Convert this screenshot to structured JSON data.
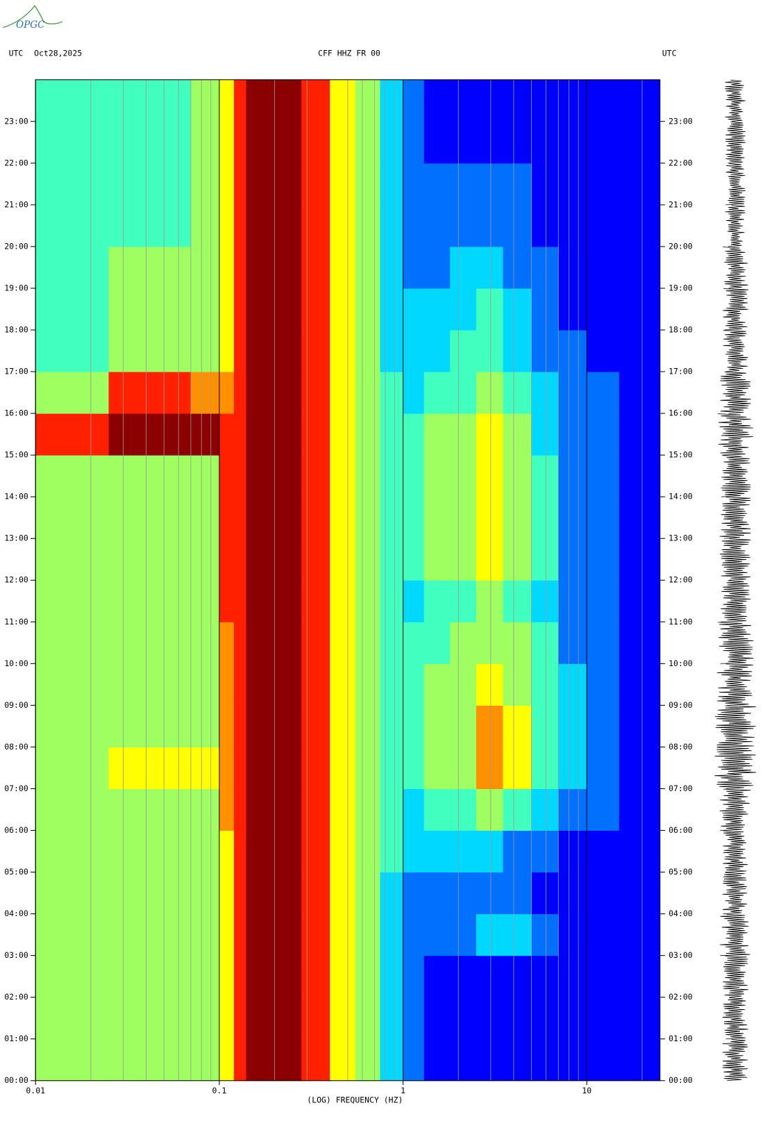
{
  "logo": "OPGC",
  "chart_data": {
    "type": "heatmap",
    "title_left": "UTC",
    "date": "Oct28,2025",
    "title": "CFF HHZ FR 00",
    "title_right": "UTC",
    "xlabel": "(LOG) FREQUENCY (HZ)",
    "xscale": "log",
    "xlim": [
      0.01,
      25
    ],
    "xticks": [
      0.01,
      0.1,
      1,
      10
    ],
    "xgrid": [
      0.02,
      0.03,
      0.04,
      0.05,
      0.06,
      0.07,
      0.08,
      0.09,
      0.2,
      0.3,
      0.4,
      0.5,
      0.6,
      0.7,
      0.8,
      0.9,
      2,
      3,
      4,
      5,
      6,
      7,
      8,
      9,
      20
    ],
    "ylim": [
      0,
      24
    ],
    "yticks": [
      {
        "value": 0,
        "label": "00:00"
      },
      {
        "value": 1,
        "label": "01:00"
      },
      {
        "value": 2,
        "label": "02:00"
      },
      {
        "value": 3,
        "label": "03:00"
      },
      {
        "value": 4,
        "label": "04:00"
      },
      {
        "value": 5,
        "label": "05:00"
      },
      {
        "value": 6,
        "label": "06:00"
      },
      {
        "value": 7,
        "label": "07:00"
      },
      {
        "value": 8,
        "label": "08:00"
      },
      {
        "value": 9,
        "label": "09:00"
      },
      {
        "value": 10,
        "label": "10:00"
      },
      {
        "value": 11,
        "label": "11:00"
      },
      {
        "value": 12,
        "label": "12:00"
      },
      {
        "value": 13,
        "label": "13:00"
      },
      {
        "value": 14,
        "label": "14:00"
      },
      {
        "value": 15,
        "label": "15:00"
      },
      {
        "value": 16,
        "label": "16:00"
      },
      {
        "value": 17,
        "label": "17:00"
      },
      {
        "value": 18,
        "label": "18:00"
      },
      {
        "value": 19,
        "label": "19:00"
      },
      {
        "value": 20,
        "label": "20:00"
      },
      {
        "value": 21,
        "label": "21:00"
      },
      {
        "value": 22,
        "label": "22:00"
      },
      {
        "value": 23,
        "label": "23:00"
      }
    ],
    "x_edges": [
      0.01,
      0.025,
      0.07,
      0.1,
      0.12,
      0.14,
      0.28,
      0.4,
      0.55,
      0.75,
      1,
      1.3,
      1.8,
      2.5,
      3.5,
      5,
      7,
      10,
      15,
      25
    ],
    "y_edges": [
      0,
      1,
      2,
      3,
      4,
      5,
      6,
      7,
      8,
      9,
      10,
      11,
      12,
      13,
      14,
      15,
      16,
      17,
      18,
      19,
      20,
      21,
      22,
      23,
      24
    ],
    "zlim": [
      0,
      10
    ],
    "colormap": [
      "#00008f",
      "#0000ff",
      "#0070ff",
      "#00d8ff",
      "#40ffbf",
      "#a0ff60",
      "#ffff00",
      "#ff9000",
      "#ff2000",
      "#8b0000"
    ],
    "z": [
      [
        5,
        5,
        5,
        7,
        9,
        10,
        9,
        7,
        5,
        3,
        2,
        1,
        1,
        1,
        1,
        1,
        1,
        1,
        1
      ],
      [
        5,
        5,
        5,
        7,
        9,
        10,
        9,
        7,
        5,
        3,
        2,
        1,
        1,
        1,
        1,
        1,
        1,
        1,
        1
      ],
      [
        5,
        6,
        5,
        7,
        9,
        10,
        9,
        7,
        5,
        3,
        2,
        1,
        1,
        1,
        1,
        1,
        1,
        1,
        1
      ],
      [
        5,
        6,
        6,
        7,
        9,
        10,
        9,
        7,
        5,
        3,
        2,
        2,
        2,
        3,
        3,
        2,
        1,
        1,
        1
      ],
      [
        5,
        5,
        5,
        7,
        9,
        10,
        9,
        7,
        5,
        3,
        2,
        2,
        2,
        2,
        2,
        1,
        1,
        1,
        1
      ],
      [
        5,
        5,
        5,
        7,
        9,
        10,
        9,
        7,
        5,
        4,
        3,
        3,
        3,
        3,
        2,
        2,
        1,
        1,
        1
      ],
      [
        5,
        6,
        6,
        8,
        9,
        10,
        9,
        7,
        5,
        4,
        3,
        4,
        4,
        5,
        4,
        3,
        2,
        2,
        1
      ],
      [
        6,
        7,
        7,
        8,
        9,
        10,
        9,
        7,
        5,
        4,
        4,
        5,
        6,
        8,
        7,
        4,
        3,
        2,
        1
      ],
      [
        6,
        6,
        6,
        8,
        9,
        10,
        9,
        7,
        5,
        4,
        4,
        5,
        6,
        8,
        7,
        4,
        3,
        2,
        1
      ],
      [
        5,
        6,
        6,
        8,
        9,
        10,
        9,
        7,
        5,
        4,
        4,
        5,
        5,
        7,
        6,
        4,
        3,
        2,
        1
      ],
      [
        5,
        6,
        6,
        8,
        9,
        10,
        9,
        7,
        5,
        4,
        4,
        4,
        5,
        6,
        5,
        4,
        2,
        2,
        1
      ],
      [
        5,
        6,
        6,
        9,
        9,
        10,
        9,
        7,
        5,
        4,
        3,
        4,
        4,
        5,
        4,
        3,
        2,
        2,
        1
      ],
      [
        5,
        6,
        6,
        9,
        9,
        10,
        9,
        7,
        5,
        4,
        4,
        5,
        5,
        7,
        6,
        4,
        2,
        2,
        1
      ],
      [
        5,
        6,
        6,
        9,
        9,
        10,
        9,
        7,
        5,
        4,
        4,
        5,
        5,
        7,
        6,
        4,
        2,
        2,
        1
      ],
      [
        5,
        6,
        6,
        9,
        9,
        10,
        9,
        7,
        5,
        4,
        4,
        5,
        6,
        7,
        6,
        4,
        2,
        2,
        1
      ],
      [
        9,
        10,
        10,
        9,
        9,
        10,
        9,
        7,
        5,
        4,
        4,
        5,
        5,
        7,
        5,
        3,
        2,
        2,
        1
      ],
      [
        5,
        9,
        8,
        8,
        9,
        10,
        9,
        7,
        5,
        4,
        3,
        4,
        4,
        5,
        4,
        3,
        2,
        2,
        1
      ],
      [
        4,
        5,
        5,
        7,
        9,
        10,
        9,
        7,
        5,
        3,
        3,
        3,
        4,
        4,
        3,
        2,
        2,
        1,
        1
      ],
      [
        4,
        5,
        5,
        7,
        9,
        10,
        9,
        7,
        5,
        3,
        3,
        3,
        3,
        4,
        3,
        2,
        1,
        1,
        1
      ],
      [
        4,
        5,
        5,
        7,
        9,
        10,
        9,
        7,
        5,
        3,
        2,
        2,
        3,
        3,
        2,
        2,
        1,
        1,
        1
      ],
      [
        4,
        4,
        5,
        7,
        9,
        10,
        9,
        7,
        5,
        3,
        2,
        2,
        2,
        2,
        2,
        1,
        1,
        1,
        1
      ],
      [
        4,
        4,
        5,
        7,
        9,
        10,
        9,
        7,
        5,
        3,
        2,
        2,
        2,
        2,
        2,
        1,
        1,
        1,
        1
      ],
      [
        4,
        4,
        5,
        7,
        9,
        10,
        9,
        7,
        5,
        3,
        2,
        1,
        1,
        1,
        1,
        1,
        1,
        1,
        1
      ],
      [
        4,
        4,
        5,
        7,
        9,
        10,
        9,
        7,
        5,
        3,
        2,
        1,
        1,
        1,
        1,
        1,
        1,
        1,
        1
      ]
    ],
    "trace_amplitude": [
      0.5,
      0.5,
      0.5,
      0.6,
      0.5,
      0.5,
      0.6,
      0.8,
      0.8,
      0.7,
      0.7,
      0.6,
      0.6,
      0.6,
      0.6,
      0.7,
      0.6,
      0.5,
      0.5,
      0.5,
      0.4,
      0.4,
      0.4,
      0.4
    ],
    "trace_color": "#000000"
  }
}
